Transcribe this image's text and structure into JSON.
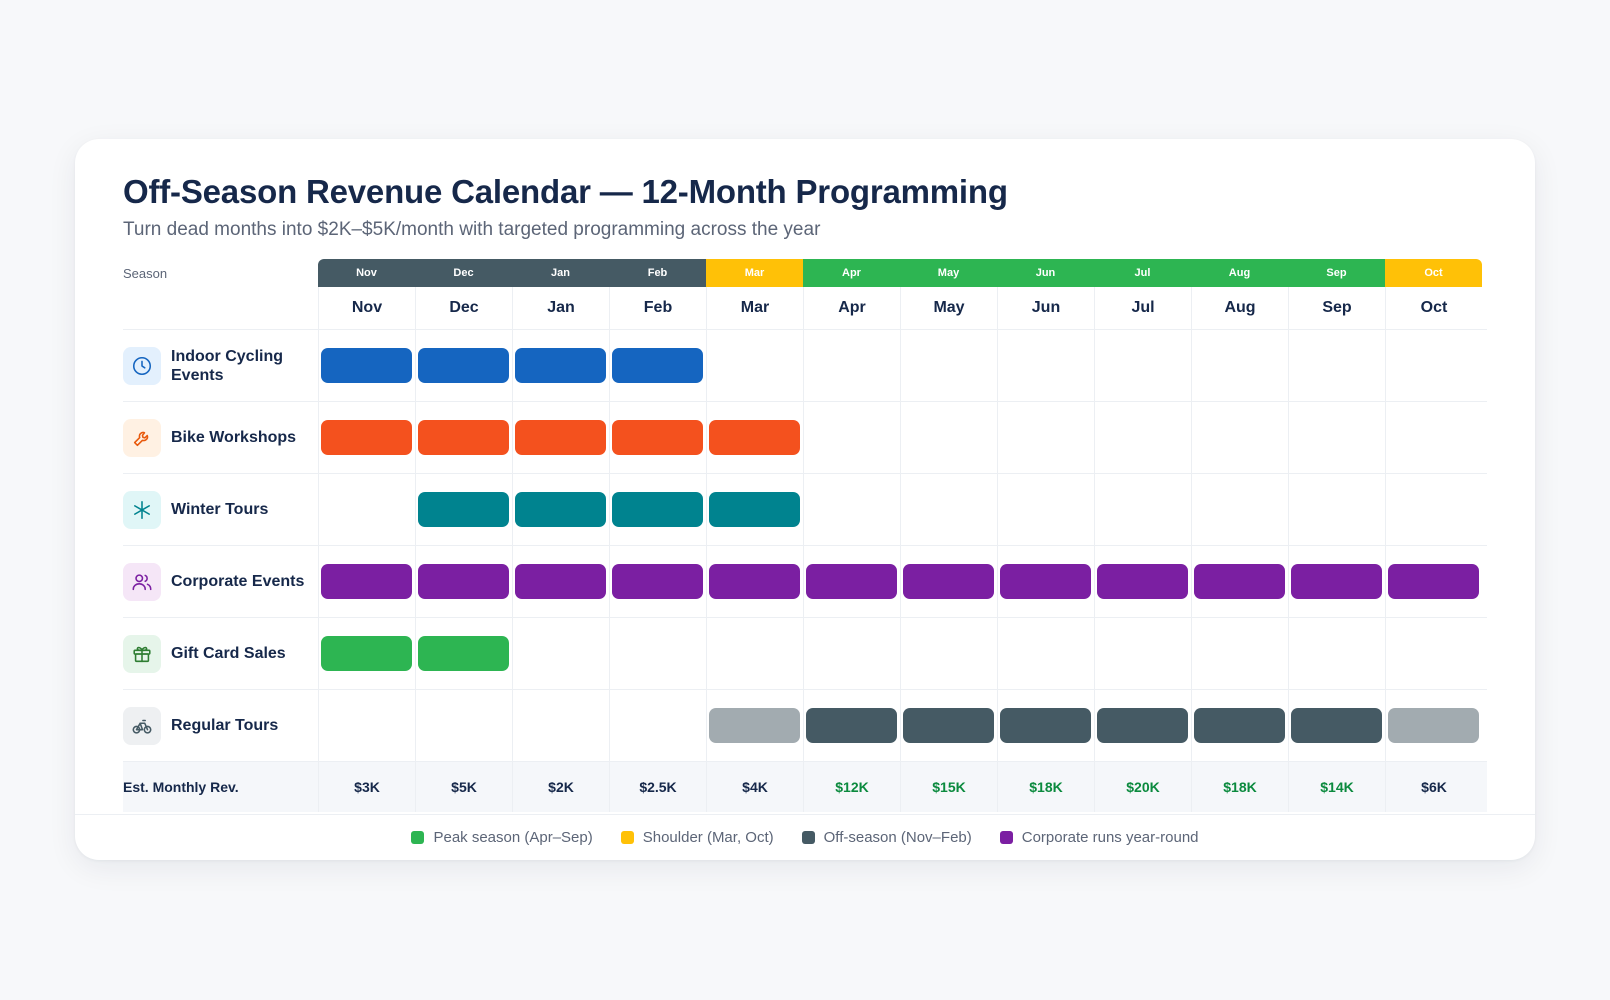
{
  "title": "Off-Season Revenue Calendar — 12-Month Programming",
  "subtitle": "Turn dead months into $2K–$5K/month with targeted programming across the year",
  "season_label": "Season",
  "months": [
    "Nov",
    "Dec",
    "Jan",
    "Feb",
    "Mar",
    "Apr",
    "May",
    "Jun",
    "Jul",
    "Aug",
    "Sep",
    "Oct"
  ],
  "season_types": [
    "off",
    "off",
    "off",
    "off",
    "shoulder",
    "peak",
    "peak",
    "peak",
    "peak",
    "peak",
    "peak",
    "shoulder"
  ],
  "colors": {
    "off": "#455a64",
    "shoulder": "#ffc107",
    "peak": "#2db552",
    "corporate": "#7b1fa2",
    "cycling": "#1565c0",
    "workshops": "#f4511e",
    "winter": "#00838f",
    "giftcard": "#2db552",
    "tour_active": "#455a64",
    "tour_shoulder": "#a2abb0",
    "rev_off": "#16284a",
    "rev_peak": "#0b8a3e"
  },
  "programs": [
    {
      "name": "Indoor Cycling Events",
      "icon": "clock-icon",
      "icon_bg": "#e3f0fd",
      "icon_color": "#1565c0",
      "bar_color": "#1565c0",
      "active": [
        1,
        1,
        1,
        1,
        0,
        0,
        0,
        0,
        0,
        0,
        0,
        0
      ]
    },
    {
      "name": "Bike Workshops",
      "icon": "wrench-icon",
      "icon_bg": "#fff1e3",
      "icon_color": "#e8590c",
      "bar_color": "#f4511e",
      "active": [
        1,
        1,
        1,
        1,
        1,
        0,
        0,
        0,
        0,
        0,
        0,
        0
      ]
    },
    {
      "name": "Winter Tours",
      "icon": "snowflake-icon",
      "icon_bg": "#e0f6f7",
      "icon_color": "#00838f",
      "bar_color": "#00838f",
      "active": [
        0,
        1,
        1,
        1,
        1,
        0,
        0,
        0,
        0,
        0,
        0,
        0
      ]
    },
    {
      "name": "Corporate Events",
      "icon": "users-icon",
      "icon_bg": "#f5e6f7",
      "icon_color": "#7b1fa2",
      "bar_color": "#7b1fa2",
      "active": [
        1,
        1,
        1,
        1,
        1,
        1,
        1,
        1,
        1,
        1,
        1,
        1
      ]
    },
    {
      "name": "Gift Card Sales",
      "icon": "gift-icon",
      "icon_bg": "#e6f5ea",
      "icon_color": "#2e7d32",
      "bar_color": "#2db552",
      "active": [
        1,
        1,
        0,
        0,
        0,
        0,
        0,
        0,
        0,
        0,
        0,
        0
      ]
    },
    {
      "name": "Regular Tours",
      "icon": "bicycle-icon",
      "icon_bg": "#eef0f2",
      "icon_color": "#455a64",
      "bar_color": "#455a64",
      "active": [
        0,
        0,
        0,
        0,
        2,
        1,
        1,
        1,
        1,
        1,
        1,
        2
      ]
    }
  ],
  "revenue_label": "Est. Monthly Rev.",
  "revenue": [
    "$3K",
    "$5K",
    "$2K",
    "$2.5K",
    "$4K",
    "$12K",
    "$15K",
    "$18K",
    "$20K",
    "$18K",
    "$14K",
    "$6K"
  ],
  "legend": [
    {
      "label": "Peak season (Apr–Sep)",
      "color": "#2db552"
    },
    {
      "label": "Shoulder (Mar, Oct)",
      "color": "#ffc107"
    },
    {
      "label": "Off-season (Nov–Feb)",
      "color": "#455a64"
    },
    {
      "label": "Corporate runs year-round",
      "color": "#7b1fa2"
    }
  ]
}
